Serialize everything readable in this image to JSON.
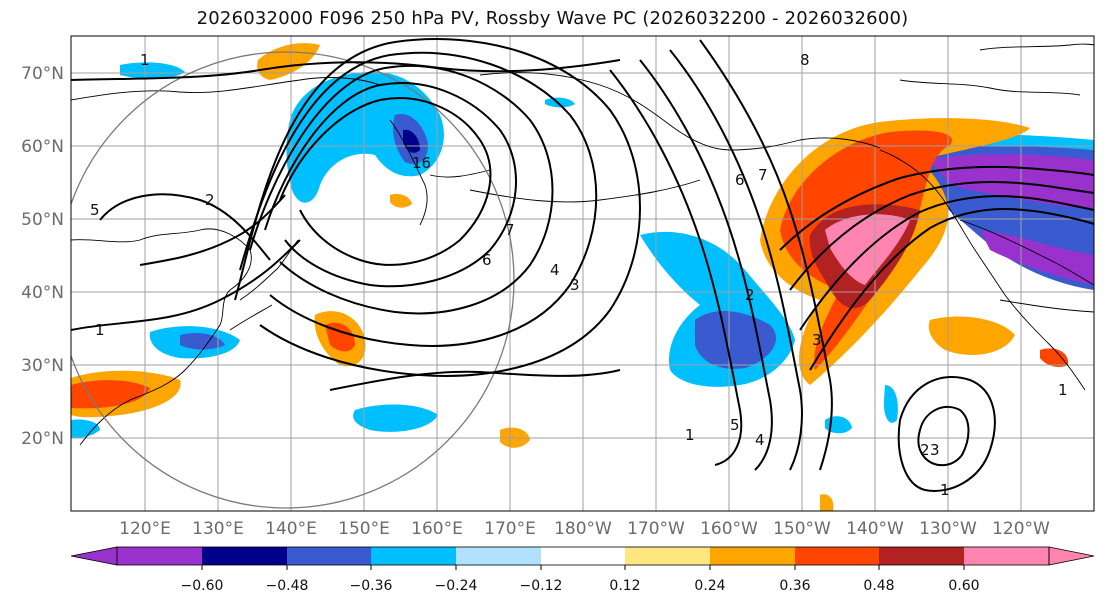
{
  "title": "2026032000 F096 250 hPa PV, Rossby Wave PC (2026032200 - 2026032600)",
  "colors": {
    "neg": [
      "#9932cc",
      "#00008b",
      "#3a5bd0",
      "#00bfff",
      "#b0e2ff"
    ],
    "neutral": "#ffffff",
    "pos": [
      "#ffe680",
      "#ffa500",
      "#ff4500",
      "#b22222",
      "#ff85b0"
    ],
    "grid": "#a0a0a0",
    "contour": "#000000"
  },
  "axes": {
    "lat_labels": [
      "70°N",
      "60°N",
      "50°N",
      "40°N",
      "30°N",
      "20°N"
    ],
    "lon_labels": [
      "120°E",
      "130°E",
      "140°E",
      "150°E",
      "160°E",
      "170°E",
      "180°W",
      "170°W",
      "160°W",
      "150°W",
      "140°W",
      "130°W",
      "120°W"
    ]
  },
  "colorbar": {
    "ticks": [
      "−0.60",
      "−0.48",
      "−0.36",
      "−0.24",
      "−0.12",
      "0.12",
      "0.24",
      "0.36",
      "0.48",
      "0.60"
    ]
  },
  "contour_labels": [
    "1",
    "2",
    "3",
    "4",
    "5",
    "6",
    "7",
    "8",
    "16"
  ]
}
